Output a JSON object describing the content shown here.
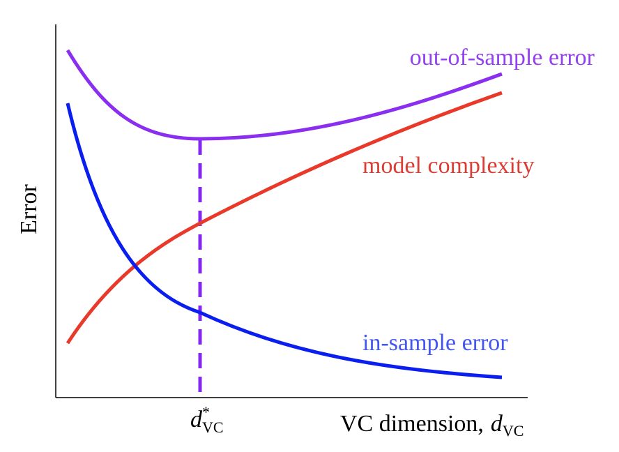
{
  "y_axis": {
    "label": "Error"
  },
  "x_axis": {
    "label": "VC dimension,",
    "symbol": "d",
    "subscript": "VC"
  },
  "marker": {
    "symbol": "d",
    "superscript": "*",
    "subscript": "VC"
  },
  "curves": [
    {
      "label": "out-of-sample error"
    },
    {
      "label": "model complexity"
    },
    {
      "label": "in-sample error"
    }
  ]
}
